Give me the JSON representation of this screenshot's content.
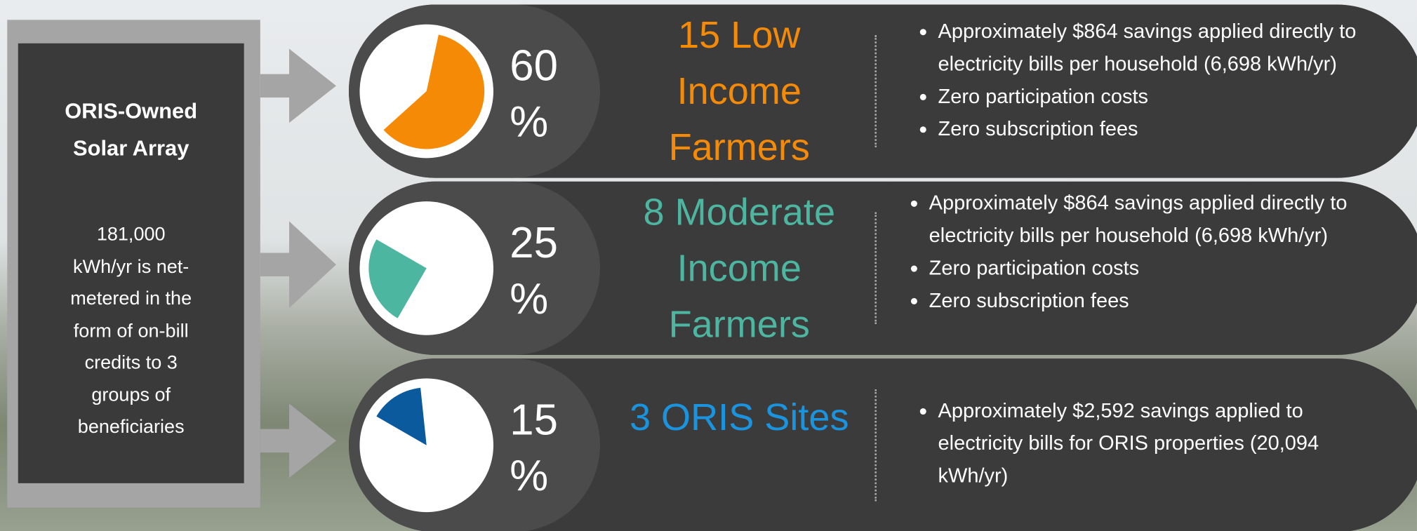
{
  "source": {
    "title": "ORIS-Owned Solar Array",
    "description": "181,000 kWh/yr is net-metered in the form of on-bill credits to 3 groups of beneficiaries"
  },
  "groups": [
    {
      "percent": {
        "value": 60,
        "label": "60 %"
      },
      "label": "15 Low Income Farmers",
      "color": "#f58a07",
      "pie_color": "#f58a07",
      "bullets": [
        "Approximately $864 savings applied directly to electricity bills per household (6,698 kWh/yr)",
        "Zero participation costs",
        "Zero subscription fees"
      ]
    },
    {
      "percent": {
        "value": 25,
        "label": "25 %"
      },
      "label": "8 Moderate Income Farmers",
      "color": "#4db6a0",
      "pie_color": "#4db6a0",
      "bullets": [
        "Approximately $864 savings applied directly to electricity bills per household (6,698 kWh/yr)",
        "Zero participation costs",
        "Zero subscription fees"
      ]
    },
    {
      "percent": {
        "value": 15,
        "label": "15 %"
      },
      "label": "3 ORIS Sites",
      "color": "#1b94df",
      "pie_color": "#0b5a9e",
      "bullets": [
        "Approximately $2,592 savings applied to electricity bills for ORIS properties (20,094 kWh/yr)"
      ]
    }
  ]
}
